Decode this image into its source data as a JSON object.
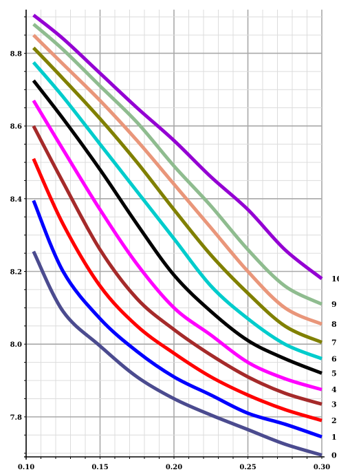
{
  "chart_data": {
    "type": "line",
    "title": "",
    "xlabel": "",
    "ylabel": "",
    "xlim": [
      0.1,
      0.3
    ],
    "ylim": [
      7.69,
      8.92
    ],
    "grid": true,
    "legend": "inline labels at right end of each curve",
    "x_ticks": [
      {
        "value": 0.1,
        "label": "0.10"
      },
      {
        "value": 0.15,
        "label": "0.15"
      },
      {
        "value": 0.2,
        "label": "0.20"
      },
      {
        "value": 0.25,
        "label": "0.25"
      },
      {
        "value": 0.3,
        "label": "0.30"
      }
    ],
    "y_ticks": [
      {
        "value": 7.8,
        "label": "7.8"
      },
      {
        "value": 8.0,
        "label": "8.0"
      },
      {
        "value": 8.2,
        "label": "8.2"
      },
      {
        "value": 8.4,
        "label": "8.4"
      },
      {
        "value": 8.6,
        "label": "8.6"
      },
      {
        "value": 8.8,
        "label": "8.8"
      }
    ],
    "x": [
      0.105,
      0.125,
      0.15,
      0.175,
      0.2,
      0.225,
      0.25,
      0.275,
      0.3
    ],
    "series": [
      {
        "name": "0",
        "color": "#4b4b8f",
        "values": [
          8.255,
          8.09,
          7.995,
          7.91,
          7.85,
          7.805,
          7.765,
          7.725,
          7.695
        ]
      },
      {
        "name": "1",
        "color": "#0000ff",
        "values": [
          8.395,
          8.2,
          8.07,
          7.98,
          7.91,
          7.86,
          7.81,
          7.78,
          7.745
        ]
      },
      {
        "name": "2",
        "color": "#ff0000",
        "values": [
          8.51,
          8.33,
          8.16,
          8.05,
          7.975,
          7.91,
          7.86,
          7.82,
          7.79
        ]
      },
      {
        "name": "3",
        "color": "#a52a2a",
        "values": [
          8.6,
          8.445,
          8.26,
          8.125,
          8.04,
          7.97,
          7.91,
          7.865,
          7.835
        ]
      },
      {
        "name": "4",
        "color": "#ff00ff",
        "values": [
          8.67,
          8.535,
          8.37,
          8.22,
          8.1,
          8.025,
          7.95,
          7.905,
          7.875
        ]
      },
      {
        "name": "5",
        "color": "#000000",
        "values": [
          8.725,
          8.62,
          8.48,
          8.33,
          8.19,
          8.09,
          8.01,
          7.96,
          7.92
        ]
      },
      {
        "name": "6",
        "color": "#00cccc",
        "values": [
          8.775,
          8.68,
          8.55,
          8.42,
          8.29,
          8.16,
          8.07,
          8.0,
          7.96
        ]
      },
      {
        "name": "7",
        "color": "#808000",
        "values": [
          8.815,
          8.73,
          8.62,
          8.5,
          8.37,
          8.245,
          8.14,
          8.05,
          8.005
        ]
      },
      {
        "name": "8",
        "color": "#e9967a",
        "values": [
          8.85,
          8.77,
          8.67,
          8.56,
          8.44,
          8.32,
          8.2,
          8.1,
          8.055
        ]
      },
      {
        "name": "9",
        "color": "#8fbc8f",
        "values": [
          8.88,
          8.81,
          8.71,
          8.61,
          8.49,
          8.38,
          8.26,
          8.16,
          8.11
        ]
      },
      {
        "name": "10",
        "color": "#9400d3",
        "values": [
          8.905,
          8.84,
          8.745,
          8.65,
          8.56,
          8.46,
          8.37,
          8.26,
          8.18
        ]
      }
    ]
  }
}
